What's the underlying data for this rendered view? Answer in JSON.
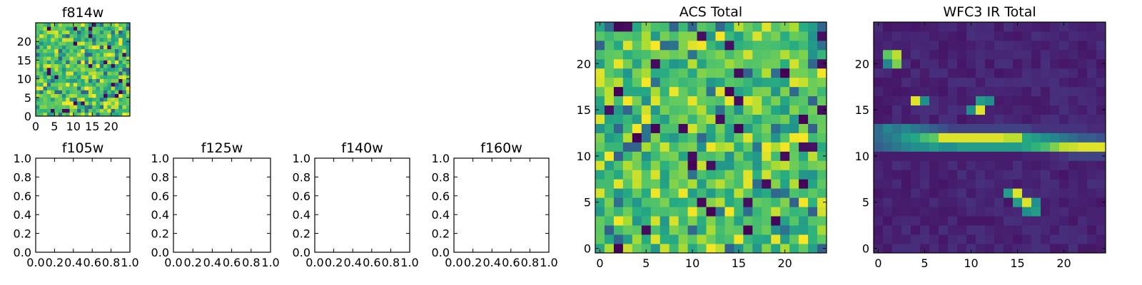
{
  "chart_data": [
    {
      "type": "heatmap",
      "title": "f814w",
      "xlim": [
        0,
        25
      ],
      "ylim": [
        0,
        25
      ],
      "xticks": [
        0,
        5,
        10,
        15,
        20
      ],
      "yticks": [
        0,
        5,
        10,
        15,
        20
      ],
      "grid": "25x25",
      "colormap": "viridis",
      "pattern": "noise"
    },
    {
      "type": "empty",
      "title": "f105w",
      "xlim": [
        0,
        1
      ],
      "ylim": [
        0,
        1
      ],
      "xticks": [
        "0.0",
        "0.2",
        "0.4",
        "0.6",
        "0.8",
        "1.0"
      ],
      "yticks": [
        "0.0",
        "0.2",
        "0.4",
        "0.6",
        "0.8",
        "1.0"
      ]
    },
    {
      "type": "empty",
      "title": "f125w",
      "xlim": [
        0,
        1
      ],
      "ylim": [
        0,
        1
      ],
      "xticks": [
        "0.0",
        "0.2",
        "0.4",
        "0.6",
        "0.8",
        "1.0"
      ],
      "yticks": [
        "0.0",
        "0.2",
        "0.4",
        "0.6",
        "0.8",
        "1.0"
      ]
    },
    {
      "type": "empty",
      "title": "f140w",
      "xlim": [
        0,
        1
      ],
      "ylim": [
        0,
        1
      ],
      "xticks": [
        "0.0",
        "0.2",
        "0.4",
        "0.6",
        "0.8",
        "1.0"
      ],
      "yticks": [
        "0.0",
        "0.2",
        "0.4",
        "0.6",
        "0.8",
        "1.0"
      ]
    },
    {
      "type": "empty",
      "title": "f160w",
      "xlim": [
        0,
        1
      ],
      "ylim": [
        0,
        1
      ],
      "xticks": [
        "0.0",
        "0.2",
        "0.4",
        "0.6",
        "0.8",
        "1.0"
      ],
      "yticks": [
        "0.0",
        "0.2",
        "0.4",
        "0.6",
        "0.8",
        "1.0"
      ]
    },
    {
      "type": "heatmap",
      "title": "ACS Total",
      "xlim": [
        -0.5,
        24.5
      ],
      "ylim": [
        -0.5,
        24.5
      ],
      "xticks": [
        0,
        5,
        10,
        15,
        20
      ],
      "yticks": [
        0,
        5,
        10,
        15,
        20
      ],
      "grid": "25x25",
      "colormap": "viridis",
      "pattern": "noise"
    },
    {
      "type": "heatmap",
      "title": "WFC3 IR Total",
      "xlim": [
        -0.5,
        24.5
      ],
      "ylim": [
        -0.5,
        24.5
      ],
      "xticks": [
        0,
        5,
        10,
        15,
        20
      ],
      "yticks": [
        0,
        5,
        10,
        15,
        20
      ],
      "grid": "25x25",
      "colormap": "viridis",
      "pattern": "sources",
      "background_level": 0.06,
      "features": [
        {
          "kind": "point",
          "x": 1,
          "y": 20,
          "value": 0.45
        },
        {
          "kind": "point",
          "x": 1,
          "y": 21,
          "value": 0.75
        },
        {
          "kind": "point",
          "x": 2,
          "y": 20,
          "value": 0.8
        },
        {
          "kind": "point",
          "x": 2,
          "y": 21,
          "value": 0.9
        },
        {
          "kind": "point",
          "x": 4,
          "y": 16,
          "value": 0.95
        },
        {
          "kind": "point",
          "x": 5,
          "y": 16,
          "value": 0.5
        },
        {
          "kind": "point",
          "x": 10,
          "y": 15,
          "value": 0.5
        },
        {
          "kind": "point",
          "x": 11,
          "y": 15,
          "value": 0.95
        },
        {
          "kind": "point",
          "x": 11,
          "y": 16,
          "value": 0.55
        },
        {
          "kind": "point",
          "x": 12,
          "y": 16,
          "value": 0.5
        },
        {
          "kind": "point",
          "x": 14,
          "y": 6,
          "value": 0.55
        },
        {
          "kind": "point",
          "x": 15,
          "y": 6,
          "value": 0.95
        },
        {
          "kind": "point",
          "x": 15,
          "y": 5,
          "value": 0.55
        },
        {
          "kind": "point",
          "x": 16,
          "y": 5,
          "value": 0.95
        },
        {
          "kind": "point",
          "x": 17,
          "y": 5,
          "value": 0.5
        },
        {
          "kind": "point",
          "x": 16,
          "y": 4,
          "value": 0.5
        },
        {
          "kind": "point",
          "x": 17,
          "y": 4,
          "value": 0.55
        },
        {
          "kind": "band",
          "y": 12,
          "values": [
            0.35,
            0.4,
            0.45,
            0.55,
            0.6,
            0.7,
            0.75,
            0.95,
            0.95,
            0.95,
            0.95,
            0.95,
            0.95,
            0.95,
            0.9,
            0.9,
            0.6,
            0.55,
            0.5,
            0.45,
            0.4,
            0.35,
            0.3,
            0.3,
            0.25
          ]
        },
        {
          "kind": "band",
          "y": 11,
          "values": [
            0.3,
            0.35,
            0.4,
            0.45,
            0.5,
            0.5,
            0.55,
            0.5,
            0.5,
            0.55,
            0.55,
            0.55,
            0.55,
            0.55,
            0.55,
            0.55,
            0.6,
            0.65,
            0.7,
            0.8,
            0.9,
            0.92,
            0.95,
            0.95,
            0.95
          ]
        },
        {
          "kind": "band",
          "y": 13,
          "values": [
            0.35,
            0.45,
            0.4,
            0.45,
            0.4,
            0.35,
            0.3,
            0.25,
            0.2,
            0.2,
            0.2,
            0.2,
            0.2,
            0.2,
            0.2,
            0.2,
            0.2,
            0.15,
            0.15,
            0.15,
            0.15,
            0.15,
            0.15,
            0.12,
            0.12
          ]
        },
        {
          "kind": "band",
          "y": 10,
          "values": [
            0.08,
            0.08,
            0.08,
            0.08,
            0.08,
            0.08,
            0.08,
            0.08,
            0.08,
            0.08,
            0.08,
            0.08,
            0.08,
            0.08,
            0.08,
            0.08,
            0.1,
            0.1,
            0.1,
            0.12,
            0.15,
            0.2,
            0.2,
            0.2,
            0.2
          ]
        }
      ]
    }
  ]
}
